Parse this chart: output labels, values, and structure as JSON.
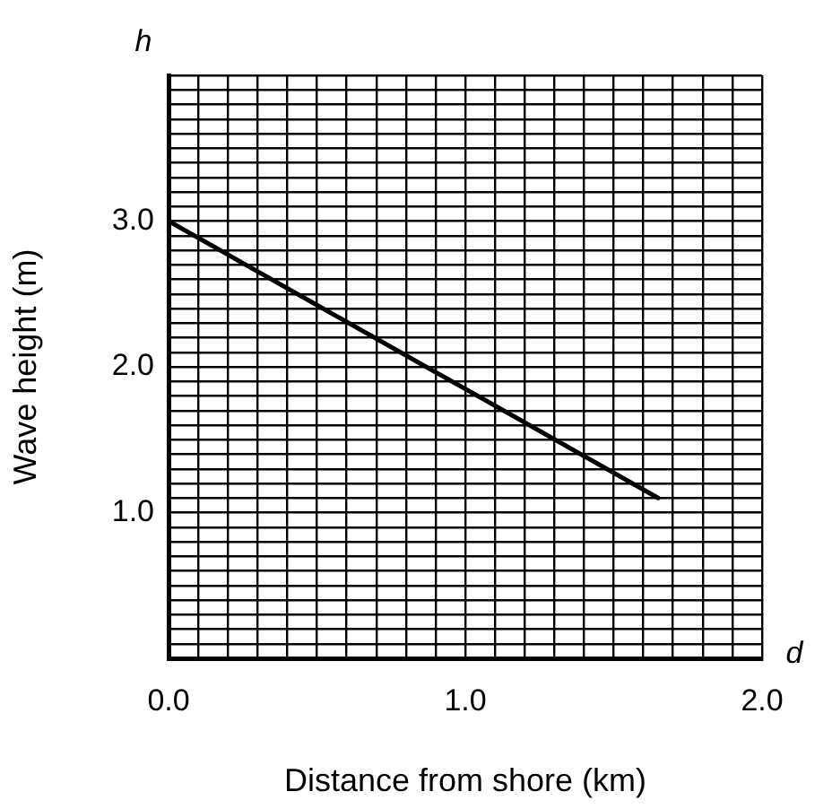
{
  "chart_data": {
    "type": "line",
    "xlabel": "Distance from shore (km)",
    "ylabel": "Wave height (m)",
    "annotations": [
      "h",
      "d"
    ],
    "x": [
      0,
      1.65
    ],
    "series": [
      {
        "color": "#000000",
        "values": [
          3.0,
          1.1
        ]
      }
    ],
    "xlim": [
      0,
      2
    ],
    "ylim": [
      0,
      4
    ],
    "xticks": [
      {
        "value": 0,
        "label": "0.0"
      },
      {
        "value": 0.1,
        "label": null
      },
      {
        "value": 0.2,
        "label": null
      },
      {
        "value": 0.3,
        "label": null
      },
      {
        "value": 0.4,
        "label": null
      },
      {
        "value": 0.5,
        "label": null
      },
      {
        "value": 0.6,
        "label": null
      },
      {
        "value": 0.7,
        "label": null
      },
      {
        "value": 0.8,
        "label": null
      },
      {
        "value": 0.9,
        "label": null
      },
      {
        "value": 1,
        "label": "1.0"
      },
      {
        "value": 1.1,
        "label": null
      },
      {
        "value": 1.2,
        "label": null
      },
      {
        "value": 1.3,
        "label": null
      },
      {
        "value": 1.4,
        "label": null
      },
      {
        "value": 1.5,
        "label": null
      },
      {
        "value": 1.6,
        "label": null
      },
      {
        "value": 1.7,
        "label": null
      },
      {
        "value": 1.8,
        "label": null
      },
      {
        "value": 1.9,
        "label": null
      },
      {
        "value": 2,
        "label": "2.0"
      }
    ],
    "yticks": [
      {
        "value": 0,
        "label": null
      },
      {
        "value": 0.1,
        "label": null
      },
      {
        "value": 0.2,
        "label": null
      },
      {
        "value": 0.3,
        "label": null
      },
      {
        "value": 0.4,
        "label": null
      },
      {
        "value": 0.5,
        "label": null
      },
      {
        "value": 0.6,
        "label": null
      },
      {
        "value": 0.7,
        "label": null
      },
      {
        "value": 0.8,
        "label": null
      },
      {
        "value": 0.9,
        "label": null
      },
      {
        "value": 1,
        "label": "1.0"
      },
      {
        "value": 1.1,
        "label": null
      },
      {
        "value": 1.2,
        "label": null
      },
      {
        "value": 1.3,
        "label": null
      },
      {
        "value": 1.4,
        "label": null
      },
      {
        "value": 1.5,
        "label": null
      },
      {
        "value": 1.6,
        "label": null
      },
      {
        "value": 1.7,
        "label": null
      },
      {
        "value": 1.8,
        "label": null
      },
      {
        "value": 1.9,
        "label": null
      },
      {
        "value": 2,
        "label": "2.0"
      },
      {
        "value": 2.1,
        "label": null
      },
      {
        "value": 2.2,
        "label": null
      },
      {
        "value": 2.3,
        "label": null
      },
      {
        "value": 2.4,
        "label": null
      },
      {
        "value": 2.5,
        "label": null
      },
      {
        "value": 2.6,
        "label": null
      },
      {
        "value": 2.7,
        "label": null
      },
      {
        "value": 2.8,
        "label": null
      },
      {
        "value": 2.9,
        "label": null
      },
      {
        "value": 3,
        "label": "3.0"
      },
      {
        "value": 3.1,
        "label": null
      },
      {
        "value": 3.2,
        "label": null
      },
      {
        "value": 3.3,
        "label": null
      },
      {
        "value": 3.4,
        "label": null
      },
      {
        "value": 3.5,
        "label": null
      },
      {
        "value": 3.6,
        "label": null
      },
      {
        "value": 3.7,
        "label": null
      },
      {
        "value": 3.8,
        "label": null
      },
      {
        "value": 3.9,
        "label": null
      },
      {
        "value": 4,
        "label": null
      }
    ],
    "grid": true,
    "legend": false,
    "marker": "none",
    "line_style": "solid"
  }
}
